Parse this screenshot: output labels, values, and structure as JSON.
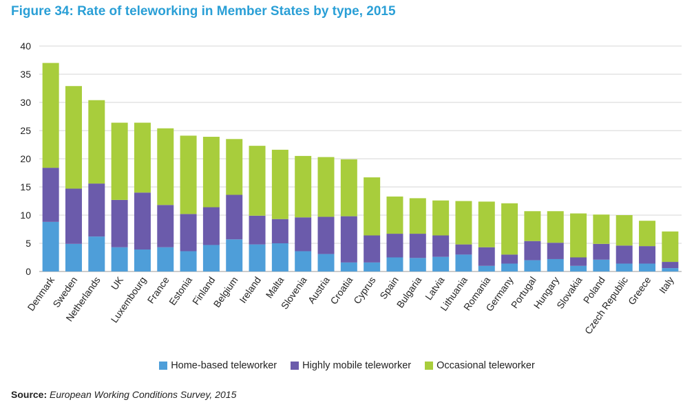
{
  "title": "Figure 34: Rate of teleworking in Member States by type, 2015",
  "source_label": "Source:",
  "source_text": "European Working Conditions Survey, 2015",
  "chart_data": {
    "type": "bar",
    "stacked": true,
    "ylim": [
      0,
      40
    ],
    "yticks": [
      0,
      5,
      10,
      15,
      20,
      25,
      30,
      35,
      40
    ],
    "grid": true,
    "legend_position": "bottom",
    "categories": [
      "Denmark",
      "Sweden",
      "Netherlands",
      "UK",
      "Luxembourg",
      "France",
      "Estonia",
      "Finland",
      "Belgium",
      "Ireland",
      "Malta",
      "Slovenia",
      "Austria",
      "Croatia",
      "Cyprus",
      "Spain",
      "Bulgaria",
      "Latvia",
      "Lithuania",
      "Romania",
      "Germany",
      "Portugal",
      "Hungary",
      "Slovakia",
      "Poland",
      "Czech Republic",
      "Greece",
      "Italy"
    ],
    "series": [
      {
        "name": "Home-based teleworker",
        "color": "#4e9ed9",
        "values": [
          8.8,
          4.9,
          6.2,
          4.3,
          3.9,
          4.3,
          3.6,
          4.7,
          5.7,
          4.8,
          5.0,
          3.6,
          3.1,
          1.6,
          1.6,
          2.5,
          2.4,
          2.6,
          3.0,
          1.0,
          1.4,
          2.0,
          2.2,
          1.0,
          2.1,
          1.4,
          1.4,
          0.6
        ]
      },
      {
        "name": "Highly mobile teleworker",
        "color": "#6b5bab",
        "values": [
          9.6,
          9.8,
          9.4,
          8.4,
          10.1,
          7.5,
          6.6,
          6.7,
          7.9,
          5.1,
          4.3,
          6.0,
          6.6,
          8.2,
          4.8,
          4.2,
          4.3,
          3.8,
          1.8,
          3.3,
          1.6,
          3.4,
          2.9,
          1.5,
          2.8,
          3.2,
          3.1,
          1.1
        ]
      },
      {
        "name": "Occasional teleworker",
        "color": "#a8cd3c",
        "values": [
          18.6,
          18.2,
          14.8,
          13.7,
          12.4,
          13.6,
          13.9,
          12.5,
          9.9,
          12.4,
          12.3,
          10.9,
          10.6,
          10.1,
          10.3,
          6.6,
          6.3,
          6.2,
          7.7,
          8.1,
          9.1,
          5.3,
          5.6,
          7.8,
          5.2,
          5.4,
          4.5,
          5.4
        ]
      }
    ]
  }
}
